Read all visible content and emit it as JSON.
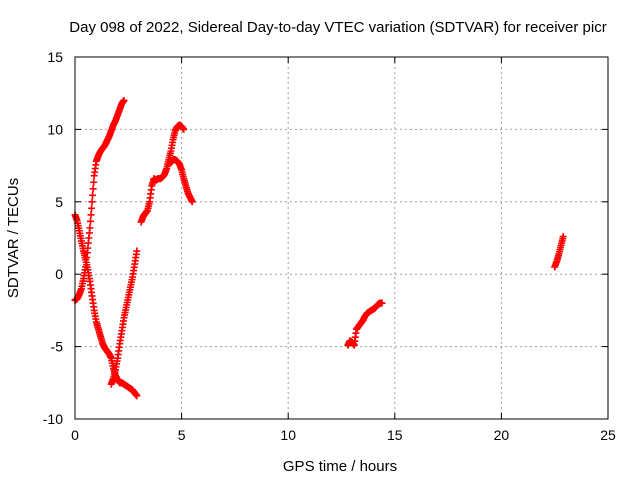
{
  "chart_data": {
    "type": "scatter",
    "title": "Day 098 of 2022, Sidereal Day-to-day VTEC variation (SDTVAR) for receiver picr",
    "xlabel": "GPS time / hours",
    "ylabel": "SDTVAR / TECUs",
    "xlim": [
      0,
      25
    ],
    "ylim": [
      -10,
      15
    ],
    "xticks": [
      "0",
      "5",
      "10",
      "15",
      "20",
      "25"
    ],
    "yticks": [
      "-10",
      "-5",
      "0",
      "5",
      "10",
      "15"
    ],
    "xtick_values": [
      0,
      5,
      10,
      15,
      20,
      25
    ],
    "ytick_values": [
      -10,
      -5,
      0,
      5,
      10,
      15
    ],
    "grid": true,
    "marker": "plus",
    "color": "#ff0000",
    "segments": [
      {
        "x": [
          0.0,
          0.1,
          0.2,
          0.3,
          0.4,
          0.5,
          0.6,
          0.7,
          0.8,
          0.9,
          1.0,
          1.1,
          1.2,
          1.3,
          1.4,
          1.5,
          1.6,
          1.7,
          1.8,
          1.9,
          2.0,
          2.1,
          2.2,
          2.3
        ],
        "y": [
          -1.8,
          -1.7,
          -1.4,
          -1.0,
          -0.3,
          0.5,
          1.8,
          3.2,
          5.0,
          6.8,
          7.8,
          8.2,
          8.5,
          8.7,
          8.9,
          9.2,
          9.5,
          9.9,
          10.3,
          10.6,
          11.0,
          11.4,
          11.8,
          12.0
        ]
      },
      {
        "x": [
          0.0,
          0.1,
          0.2,
          0.3,
          0.4,
          0.5,
          0.6,
          0.7,
          0.8,
          0.9,
          1.0,
          1.1,
          1.2,
          1.3,
          1.4,
          1.5,
          1.6,
          1.7,
          1.8,
          1.9,
          2.0,
          2.1,
          2.2,
          2.3,
          2.4,
          2.5,
          2.6,
          2.7,
          2.8,
          2.9
        ],
        "y": [
          4.1,
          3.7,
          3.0,
          2.3,
          1.6,
          1.0,
          0.3,
          -0.5,
          -1.5,
          -2.5,
          -3.3,
          -3.8,
          -4.3,
          -4.8,
          -5.1,
          -5.3,
          -5.5,
          -5.8,
          -6.5,
          -7.0,
          -7.3,
          -7.5,
          -7.5,
          -7.6,
          -7.7,
          -7.8,
          -7.9,
          -8.0,
          -8.2,
          -8.4
        ]
      },
      {
        "x": [
          1.7,
          1.8,
          1.9,
          2.0,
          2.1,
          2.2,
          2.3,
          2.4,
          2.5,
          2.6,
          2.7,
          2.8,
          2.9
        ],
        "y": [
          -7.6,
          -7.2,
          -6.6,
          -5.8,
          -4.8,
          -3.9,
          -3.0,
          -2.3,
          -1.6,
          -0.9,
          -0.2,
          0.7,
          1.6
        ]
      },
      {
        "x": [
          3.1,
          3.2,
          3.3,
          3.4,
          3.5,
          3.6,
          3.7,
          3.8,
          3.9,
          4.0,
          4.1,
          4.2,
          4.3,
          4.4,
          4.5,
          4.6,
          4.7,
          4.8,
          4.9,
          5.0,
          5.1
        ],
        "y": [
          3.6,
          4.0,
          4.2,
          4.4,
          5.0,
          6.1,
          6.6,
          6.5,
          6.6,
          6.6,
          6.7,
          6.9,
          7.3,
          7.9,
          8.5,
          9.3,
          9.9,
          10.2,
          10.3,
          10.2,
          10.0
        ]
      },
      {
        "x": [
          4.5,
          4.6,
          4.7,
          4.8,
          4.9,
          5.0,
          5.1,
          5.2,
          5.3,
          5.4,
          5.5
        ],
        "y": [
          7.7,
          7.9,
          7.9,
          7.8,
          7.6,
          7.2,
          6.6,
          6.1,
          5.6,
          5.3,
          5.0
        ]
      },
      {
        "x": [
          12.8,
          12.9,
          13.0,
          13.1,
          13.2,
          13.3,
          13.4,
          13.5,
          13.6,
          13.7,
          13.8,
          13.9,
          14.0,
          14.1,
          14.2,
          14.3,
          14.4
        ],
        "y": [
          -4.9,
          -4.6,
          -4.7,
          -4.9,
          -3.8,
          -3.6,
          -3.4,
          -3.2,
          -2.9,
          -2.7,
          -2.6,
          -2.5,
          -2.4,
          -2.3,
          -2.1,
          -2.0,
          -2.0
        ]
      },
      {
        "x": [
          22.5,
          22.6,
          22.7,
          22.8,
          22.9
        ],
        "y": [
          0.5,
          0.9,
          1.4,
          2.0,
          2.6
        ]
      }
    ]
  }
}
